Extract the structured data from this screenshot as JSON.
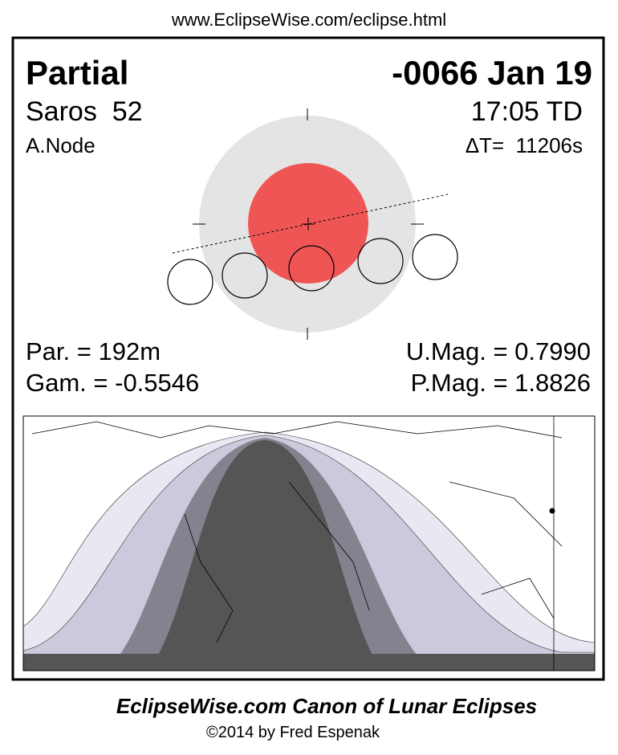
{
  "header": {
    "url": "www.EclipseWise.com/eclipse.html"
  },
  "panel": {
    "type": "Partial",
    "date": "-0066 Jan 19",
    "saros": "Saros  52",
    "time": "17:05 TD",
    "node": "A.Node",
    "delta_t": "ΔT=  11206s",
    "par": "Par. = 192m",
    "umag": "U.Mag. = 0.7990",
    "gam": "Gam. = -0.5546",
    "pmag": "P.Mag. = 1.8826"
  },
  "footer": {
    "title": "EclipseWise.com Canon of Lunar Eclipses",
    "copyright": "©2014 by Fred Espenak"
  }
}
